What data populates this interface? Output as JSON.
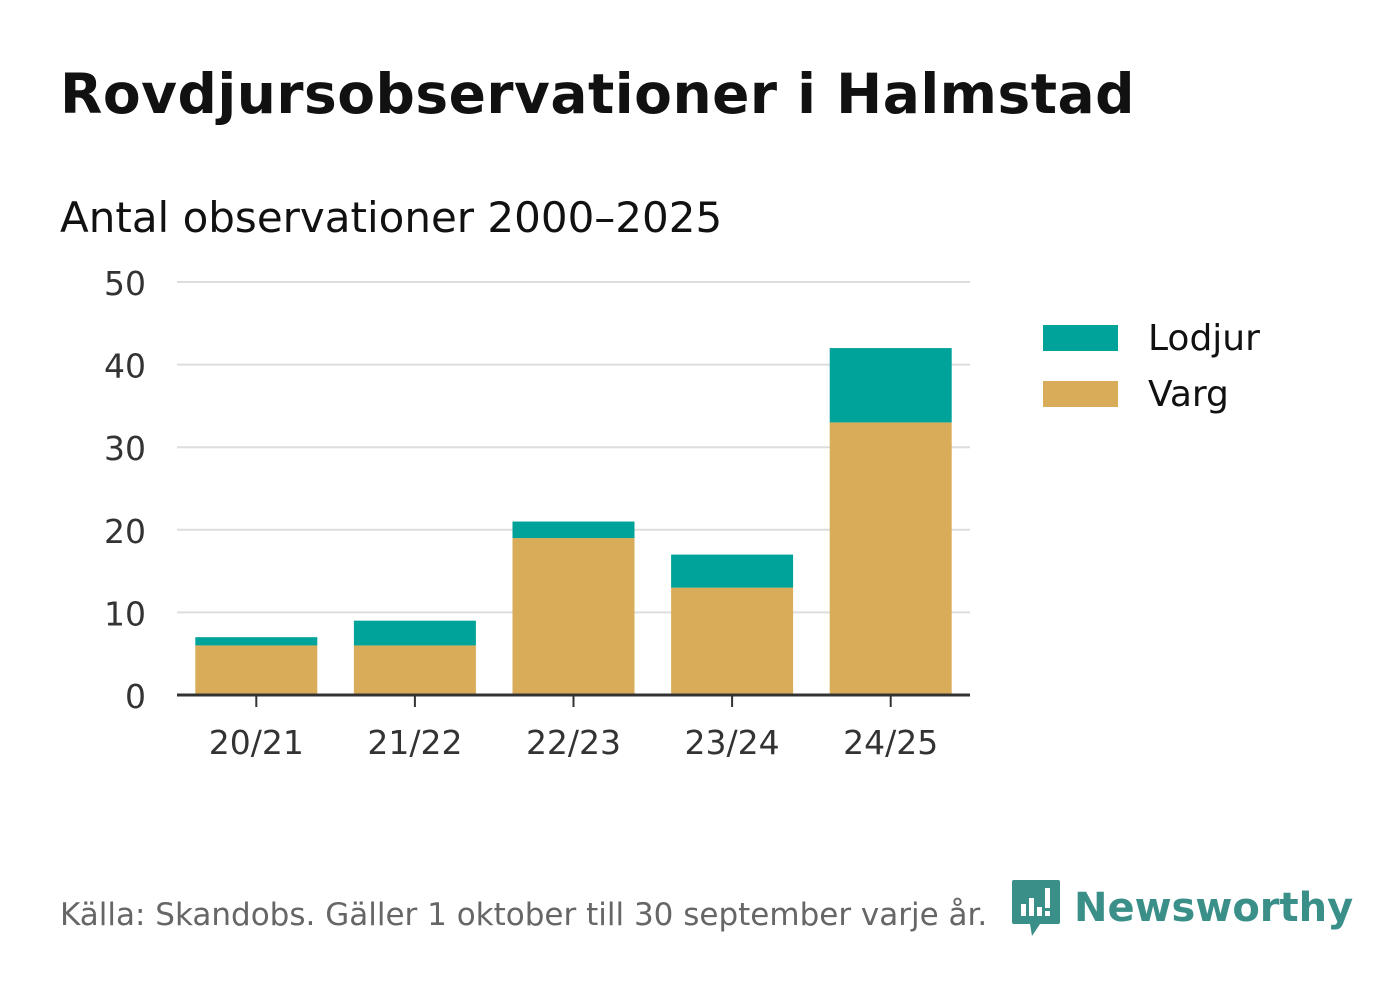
{
  "title": "Rovdjursobservationer i Halmstad",
  "subtitle": "Antal observationer 2000–2025",
  "source": "Källa: Skandobs. Gäller 1 oktober till 30 september varje år.",
  "brand": {
    "name": "Newsworthy",
    "color": "#3a8f89",
    "icon": "newsworthy-logo-icon"
  },
  "chart_data": {
    "type": "bar",
    "stacked": true,
    "categories": [
      "20/21",
      "21/22",
      "22/23",
      "23/24",
      "24/25"
    ],
    "series": [
      {
        "name": "Varg",
        "color": "#d9ac5a",
        "values": [
          6,
          6,
          19,
          13,
          33
        ]
      },
      {
        "name": "Lodjur",
        "color": "#00a39a",
        "values": [
          1,
          3,
          2,
          4,
          9
        ]
      }
    ],
    "ylim": [
      0,
      50
    ],
    "yticks": [
      0,
      10,
      20,
      30,
      40,
      50
    ],
    "grid": true,
    "legend_position": "right",
    "legend_order": [
      "Lodjur",
      "Varg"
    ]
  }
}
